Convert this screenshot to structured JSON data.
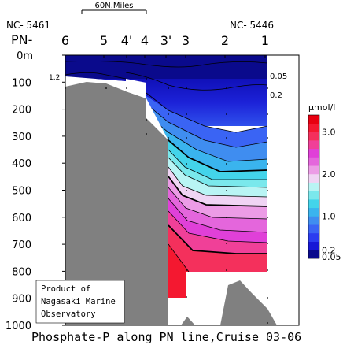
{
  "chart_data": {
    "type": "heatmap",
    "title": "Phosphate-P along PN line,Cruise 03-06",
    "scale_bar": "60N.Miles",
    "line_label": "PN-",
    "left_station_id": "NC- 5461",
    "right_station_id": "NC- 5446",
    "stations": [
      "6",
      "5",
      "4'",
      "4",
      "3'",
      "3",
      "2",
      "1"
    ],
    "y_axis": {
      "unit": "m",
      "ticks": [
        "0m",
        "100",
        "200",
        "300",
        "400",
        "500",
        "600",
        "700",
        "800",
        "900",
        "1000"
      ],
      "range": [
        0,
        1000
      ],
      "inverted": true
    },
    "contour_labels": [
      "1.2",
      "0.05",
      "0.2"
    ],
    "colorbar": {
      "unit": "μmol/l",
      "tick_labels": [
        "3.0",
        "2.0",
        "1.0",
        "0.2",
        "0.05"
      ],
      "tick_values": [
        3.0,
        2.0,
        1.0,
        0.2,
        0.05
      ],
      "levels": [
        0.05,
        0.2,
        0.4,
        0.6,
        0.8,
        1.0,
        1.2,
        1.4,
        1.6,
        1.8,
        2.0,
        2.2,
        2.4,
        2.6,
        2.8,
        3.0,
        3.2
      ],
      "colors": [
        "#0a0a8c",
        "#1717d6",
        "#2b3cf0",
        "#3a64f4",
        "#3f8df0",
        "#3ab4ee",
        "#43d4ea",
        "#7ae8ec",
        "#b9f4f4",
        "#f0d4f4",
        "#ec9ce6",
        "#e466dc",
        "#e040d8",
        "#f04098",
        "#f4305c",
        "#f41830",
        "#e80010"
      ]
    },
    "credit_lines": [
      "Product of",
      "Nagasaki Marine",
      "Observatory"
    ]
  }
}
